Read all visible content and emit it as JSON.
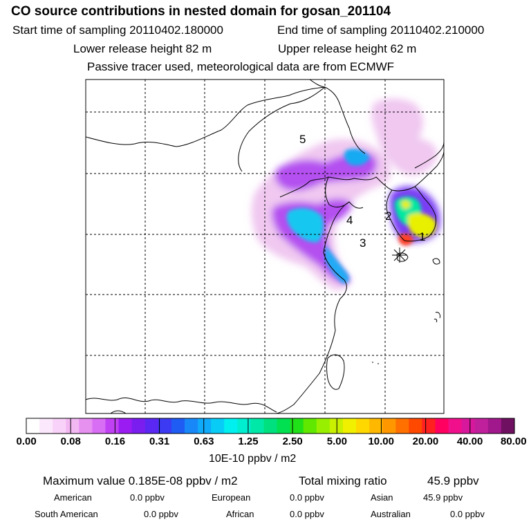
{
  "header": {
    "title": "CO  source contributions in nested domain for gosan_201104",
    "start_label": "Start time of sampling 20110402.180000",
    "end_label": "End time of sampling 20110402.210000",
    "lower_label": "Lower release height   82 m",
    "upper_label": "Upper release height   62 m",
    "note": "Passive tracer used, meteorological data are from ECMWF"
  },
  "map": {
    "region_labels": [
      "1",
      "2",
      "3",
      "4",
      "5"
    ],
    "receptor": "gosan-receptor-marker"
  },
  "colorbar": {
    "ticks": [
      "0.00",
      "0.08",
      "0.16",
      "0.31",
      "0.63",
      "1.25",
      "2.50",
      "5.00",
      "10.00",
      "20.00",
      "40.00",
      "80.00"
    ],
    "unit": "10E-10 ppbv / m2",
    "colors": [
      "#ffffff",
      "#fce8fc",
      "#f8d2f8",
      "#f2b8f2",
      "#e690f0",
      "#d86ef4",
      "#c040f4",
      "#9a1cf2",
      "#7a1ef0",
      "#5a28f2",
      "#3c3af2",
      "#1e5cf4",
      "#1888f8",
      "#10aafa",
      "#08ccf6",
      "#00f0f0",
      "#00eed0",
      "#00e8a8",
      "#00e07e",
      "#00e050",
      "#20e018",
      "#60e800",
      "#98f000",
      "#c8f000",
      "#f0f000",
      "#ffd800",
      "#ffb800",
      "#ff9800",
      "#ff7000",
      "#ff4800",
      "#ff2020",
      "#ff0060",
      "#f0108c",
      "#d8189c",
      "#c0209c",
      "#a0188c",
      "#701060"
    ]
  },
  "stats": {
    "max_label": "Maximum value  0.185E-08 ppbv / m2",
    "total_label": "Total mixing ratio",
    "total_value": "45.9 ppbv",
    "sources": [
      {
        "name": "American",
        "value": "0.0 ppbv"
      },
      {
        "name": "European",
        "value": "0.0 ppbv"
      },
      {
        "name": "Asian",
        "value": "45.9 ppbv"
      },
      {
        "name": "South American",
        "value": "0.0 ppbv"
      },
      {
        "name": "African",
        "value": "0.0 ppbv"
      },
      {
        "name": "Australian",
        "value": "0.0 ppbv"
      }
    ]
  }
}
